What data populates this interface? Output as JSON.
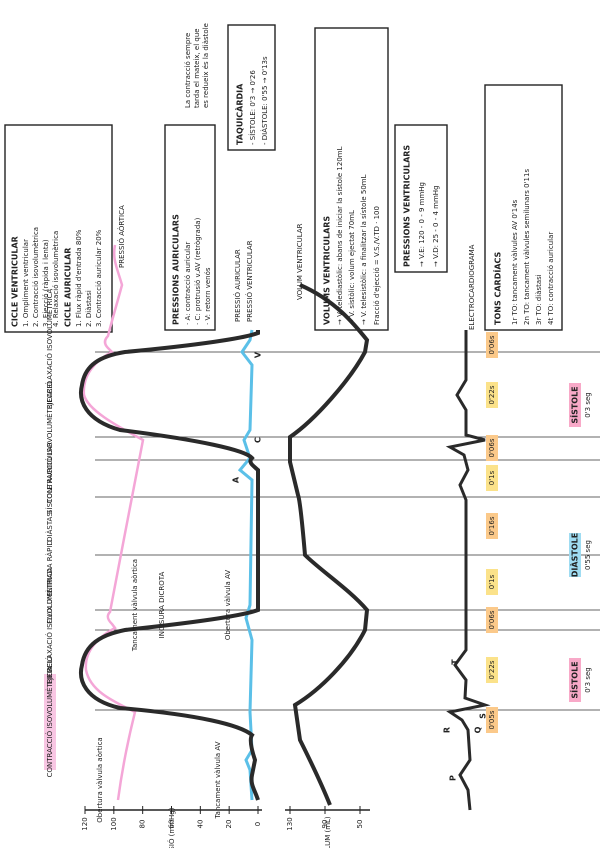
{
  "ventricular_cycle": {
    "title": "CICLE VENTRICULAR",
    "items": [
      "1. Ompliment ventricular",
      "2. Contracció isovolumètrica",
      "3. Ejecció (ràpida i lenta)",
      "4. Relaxació isovolumètrica"
    ]
  },
  "atrial_cycle": {
    "title": "CICLE AURICULAR",
    "items": [
      "1. Flux ràpid d'entrada 80%",
      "2. Diàstasi",
      "3. Contracció auricular 20%"
    ]
  },
  "atrial_pressures": {
    "title": "PRESSIONS AURICULARS",
    "items": [
      "· A: contracció auricular",
      "· C: protrusió v.AV (retrògrada)",
      "· V: retorn venós"
    ]
  },
  "tachycardia": {
    "title": "TAQUICÀRDIA",
    "items": [
      "- SÍSTOLE: 0'3 → 0'26",
      "- DIÀSTOLE: 0'55 → 0'13s"
    ]
  },
  "note": [
    "La contracció sempre",
    "tarda el mateix, el que",
    "es redueix és la diàstole"
  ],
  "ventricular_volumes": {
    "title": "VOLUMS VENTRICULARS",
    "items": [
      "→ V. telediastòlic: abans de iniciar la sístole 120mL",
      "→ V. sistòlic: volum ejectat 70mL",
      "→ V. telesistòlic: a finalitzar la sístole 50mL",
      "Fracció d'ejecció = V.S./V.TD · 100"
    ]
  },
  "ventricular_pressures": {
    "title": "PRESSIONS VENTRICULARS",
    "items": [
      "→ V.E: 120 - 0 - 9 mmHg",
      "→ V.D: 25 - 0 - 4 mmHg"
    ]
  },
  "heart_sounds": {
    "title": "TONS CARDÍACS",
    "items": [
      "1r TO: tancament vàlvules AV 0'14s",
      "2n TO: tancament vàlvules semilunars 0'11s",
      "3r TO: diàstasi",
      "4t TO: contracció auricular"
    ]
  },
  "curve_labels": {
    "aortic": "PRESSIÓ AÒRTICA",
    "atrial": "PRESSIÓ AURICULAR",
    "ventricular": "PRESSIÓ VENTRICULAR",
    "volume": "VOLUM VENTRICULAR",
    "ecg": "ELECTROCARDIOGRAMA"
  },
  "phases": [
    "CONTRACCIÓ ISOVOLUMÈTRICA",
    "EJECCIÓ",
    "RELAXACIÓ ISOVOLUMÈTRICA",
    "FLUX D'ENTRADA RÀPID",
    "DIÀSTASI",
    "SÍSTOLE AURICULAR",
    "CONTRACCIÓ ISOVOLUMÈTRICA",
    "EJECCIÓ",
    "RELAXACIÓ ISOVOLUMÈTRICA"
  ],
  "durations": [
    "0'05s",
    "0'22s",
    "0'06s",
    "0'1s",
    "0'16s",
    "0'1s",
    "0'06s",
    "0'22s",
    "0'06s"
  ],
  "periods": [
    {
      "name": "SÍSTOLE",
      "duration": "0'3 seg"
    },
    {
      "name": "DIÀSTOLE",
      "duration": "0'55 seg"
    },
    {
      "name": "SÍSTOLE",
      "duration": "0'3 seg"
    }
  ],
  "annotations": [
    "Tancament vàlvula aòrtica",
    "INCISURA DICROTA",
    "Obertura vàlvula AV",
    "Obertura vàlvula aòrtica",
    "Tancament vàlvula AV"
  ],
  "waves": {
    "atrial": [
      "A",
      "C",
      "V"
    ],
    "ecg": [
      "P",
      "Q",
      "R",
      "S",
      "T"
    ]
  },
  "pressure_axis": {
    "label": "PRESSIÓ (mmHg)",
    "ticks": [
      120,
      100,
      80,
      60,
      40,
      20,
      0
    ]
  },
  "volume_axis": {
    "label": "VOLUM (mL)",
    "ticks": [
      130,
      90,
      50
    ]
  }
}
